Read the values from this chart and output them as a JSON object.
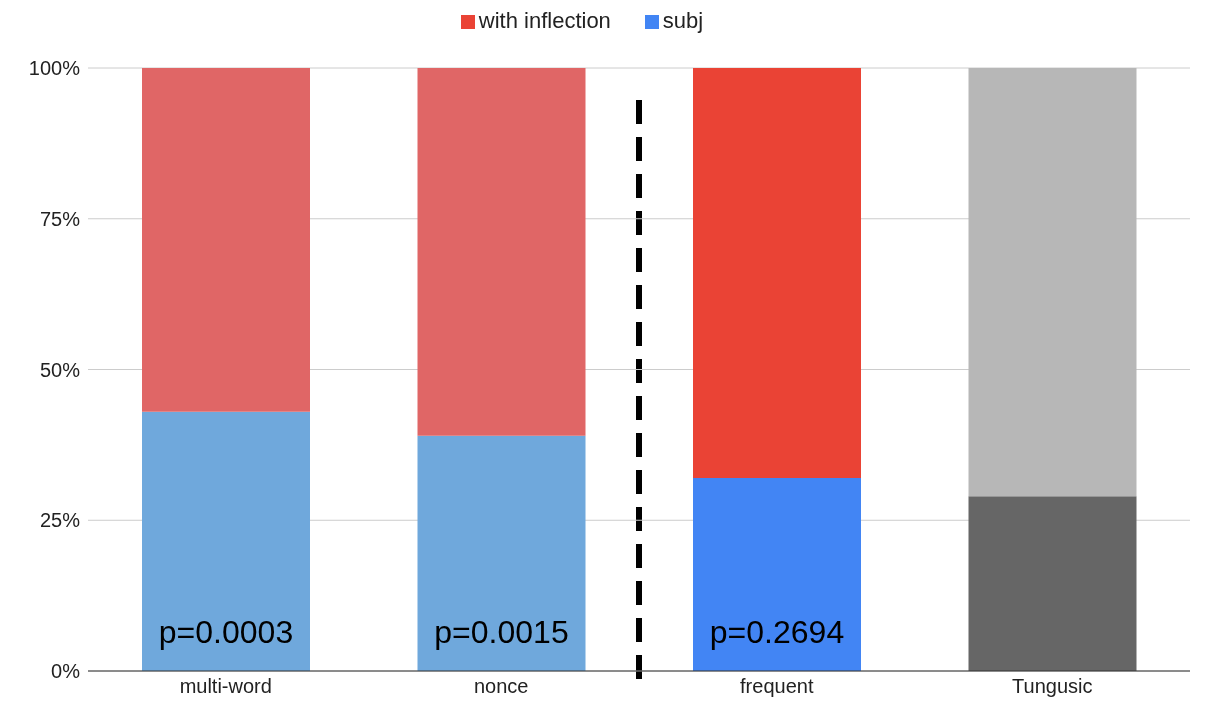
{
  "chart_data": {
    "type": "bar",
    "stacked": true,
    "categories": [
      "multi-word",
      "nonce",
      "frequent",
      "Tungusic"
    ],
    "series": [
      {
        "name": "subj",
        "color": "#4285f4",
        "colors": [
          "#6fa8dc",
          "#6fa8dc",
          "#4285f4",
          "#666666"
        ],
        "values": [
          43,
          39,
          32,
          29
        ]
      },
      {
        "name": "with inflection",
        "color": "#ea4335",
        "colors": [
          "#e06666",
          "#e06666",
          "#ea4335",
          "#b7b7b7"
        ],
        "values": [
          57,
          61,
          68,
          71
        ]
      }
    ],
    "ylim": [
      0,
      100
    ],
    "yticks": [
      {
        "value": 0,
        "label": "0%"
      },
      {
        "value": 25,
        "label": "25%"
      },
      {
        "value": 50,
        "label": "50%"
      },
      {
        "value": 75,
        "label": "75%"
      },
      {
        "value": 100,
        "label": "100%"
      }
    ],
    "grid": "y",
    "legend": "top",
    "annotations": [
      "p=0.0003",
      "p=0.0015",
      "p=0.2694"
    ]
  }
}
